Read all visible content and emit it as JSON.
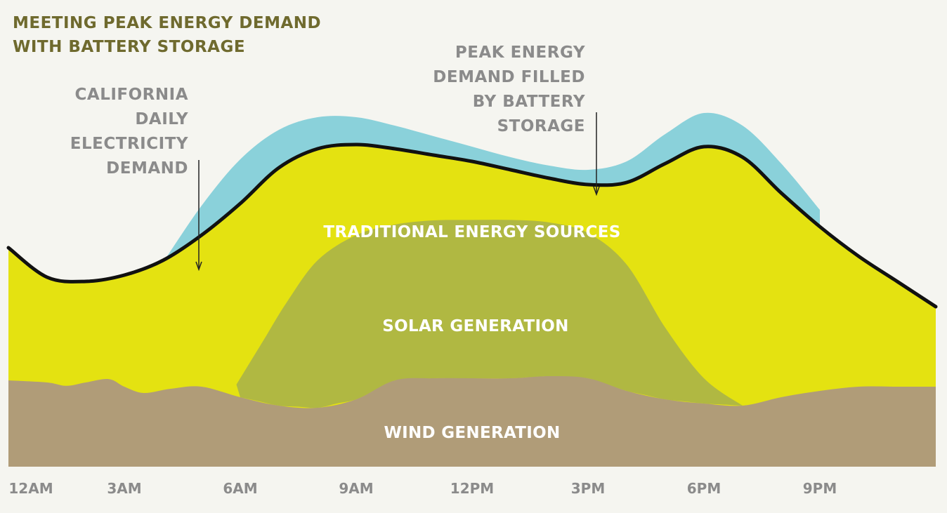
{
  "title": {
    "line1": "MEETING PEAK ENERGY DEMAND",
    "line2": "WITH BATTERY STORAGE"
  },
  "annotations": {
    "demand": [
      "CALIFORNIA",
      "DAILY",
      "ELECTRICITY",
      "DEMAND"
    ],
    "peak": [
      "PEAK ENERGY",
      "DEMAND FILLED",
      "BY BATTERY",
      "STORAGE"
    ]
  },
  "area_labels": {
    "traditional": "TRADITIONAL ENERGY SOURCES",
    "solar": "SOLAR GENERATION",
    "wind": "WIND GENERATION"
  },
  "colors": {
    "background": "#f5f5f0",
    "battery": "#8ad1da",
    "traditional": "#e4e211",
    "solar": "#b0b842",
    "wind": "#b09c78",
    "demand_line": "#111111",
    "title": "#6f6a2e",
    "annotation": "#8b8b8b"
  },
  "chart_data": {
    "type": "area",
    "x_ticks": [
      "12AM",
      "3AM",
      "6AM",
      "9AM",
      "12PM",
      "3PM",
      "6PM",
      "9PM"
    ],
    "x_tick_hours": [
      0,
      3,
      6,
      9,
      12,
      15,
      18,
      21
    ],
    "x_range_hours": [
      0,
      24
    ],
    "y_axis_shown": false,
    "grid": false,
    "series": [
      {
        "name": "WIND GENERATION",
        "layer": "wind",
        "points": [
          [
            0,
            20.5
          ],
          [
            1,
            20
          ],
          [
            1.5,
            19.2
          ],
          [
            2,
            20
          ],
          [
            2.6,
            20.8
          ],
          [
            3,
            19
          ],
          [
            3.5,
            17.5
          ],
          [
            4.2,
            18.5
          ],
          [
            5,
            19
          ],
          [
            6,
            16.5
          ],
          [
            7,
            14.5
          ],
          [
            8,
            14
          ],
          [
            9,
            16
          ],
          [
            10,
            20.5
          ],
          [
            11,
            21
          ],
          [
            12,
            21
          ],
          [
            13,
            21
          ],
          [
            14,
            21.5
          ],
          [
            15,
            21
          ],
          [
            16,
            18
          ],
          [
            17,
            16
          ],
          [
            18,
            15
          ],
          [
            19,
            14.5
          ],
          [
            20,
            16.5
          ],
          [
            21,
            18
          ],
          [
            22,
            19
          ],
          [
            23,
            19
          ],
          [
            24,
            19
          ]
        ]
      },
      {
        "name": "SOLAR GENERATION",
        "layer": "solar",
        "points": [
          [
            5.9,
            19.5
          ],
          [
            6.6,
            30
          ],
          [
            7.2,
            39
          ],
          [
            8,
            49
          ],
          [
            9,
            55
          ],
          [
            10,
            57.5
          ],
          [
            11,
            58.5
          ],
          [
            12,
            58.6
          ],
          [
            13,
            58.6
          ],
          [
            14,
            58
          ],
          [
            15,
            55.5
          ],
          [
            16,
            48
          ],
          [
            17,
            33
          ],
          [
            18,
            21
          ],
          [
            19,
            14.5
          ]
        ]
      },
      {
        "name": "CALIFORNIA DAILY ELECTRICITY DEMAND",
        "layer": "demand",
        "points": [
          [
            0,
            52
          ],
          [
            1,
            45
          ],
          [
            2,
            44
          ],
          [
            3,
            45.5
          ],
          [
            4,
            49
          ],
          [
            5,
            55
          ],
          [
            6,
            62.5
          ],
          [
            7,
            71
          ],
          [
            8,
            75.5
          ],
          [
            9,
            76.5
          ],
          [
            10,
            75.5
          ],
          [
            11,
            74
          ],
          [
            12,
            72.5
          ],
          [
            13,
            70.5
          ],
          [
            14,
            68.5
          ],
          [
            15,
            67
          ],
          [
            16,
            67.5
          ],
          [
            17,
            72
          ],
          [
            18,
            76
          ],
          [
            19,
            73.5
          ],
          [
            20,
            65
          ],
          [
            21,
            57
          ],
          [
            22,
            50
          ],
          [
            23,
            44
          ],
          [
            24,
            38
          ]
        ]
      },
      {
        "name": "PEAK ENERGY DEMAND FILLED BY BATTERY STORAGE",
        "layer": "battery",
        "points": [
          [
            4,
            48.5
          ],
          [
            5,
            62
          ],
          [
            6,
            73
          ],
          [
            7,
            80
          ],
          [
            8,
            83
          ],
          [
            9,
            83
          ],
          [
            10,
            81
          ],
          [
            11,
            78.5
          ],
          [
            12,
            76
          ],
          [
            13,
            73.5
          ],
          [
            14,
            71.5
          ],
          [
            15,
            70.5
          ],
          [
            16,
            72.5
          ],
          [
            17,
            79
          ],
          [
            18,
            84
          ],
          [
            19,
            81
          ],
          [
            20,
            72
          ],
          [
            21,
            61
          ]
        ]
      }
    ]
  }
}
